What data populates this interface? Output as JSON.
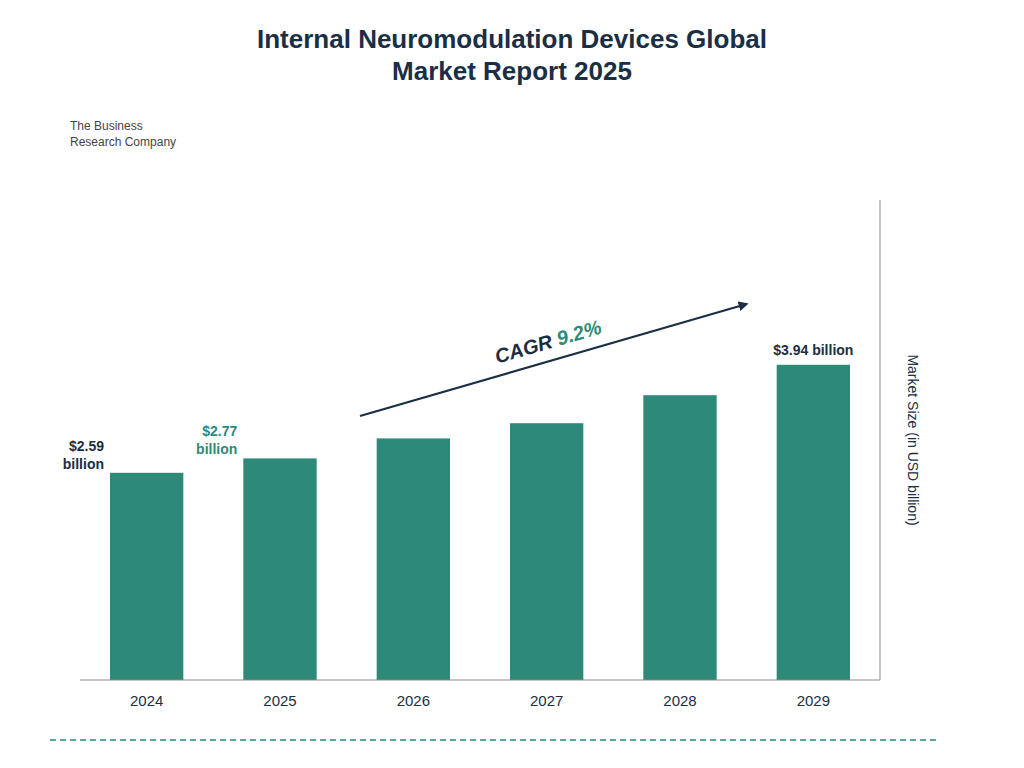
{
  "chart_data": {
    "type": "bar",
    "title": "Internal Neuromodulation Devices Global\nMarket Report 2025",
    "categories": [
      "2024",
      "2025",
      "2026",
      "2027",
      "2028",
      "2029"
    ],
    "values": [
      2.59,
      2.77,
      3.02,
      3.21,
      3.56,
      3.94
    ],
    "value_labels": [
      "$2.59\nbillion",
      "$2.77\nbillion",
      null,
      null,
      null,
      "$3.94 billion"
    ],
    "data_labels": true,
    "color": "#2d8a78",
    "ylabel": "Market Size (in USD billion)",
    "ylim": [
      0,
      6.0
    ],
    "grid": false,
    "tick_labels": "x",
    "annotations": [
      "CAGR ",
      "9.2%",
      "The Business\nResearch Company"
    ]
  }
}
